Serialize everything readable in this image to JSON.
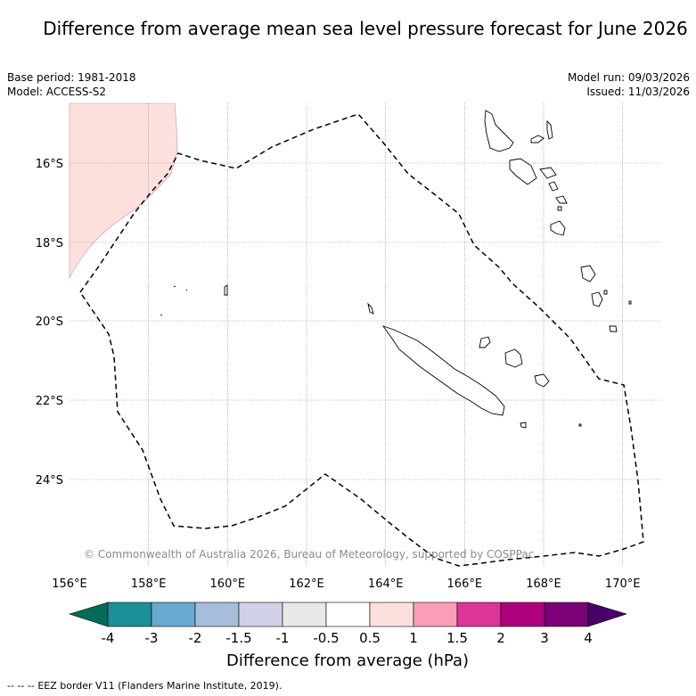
{
  "title": "Difference from average mean sea level pressure forecast for June 2026",
  "metadata": {
    "base_period": "Base period: 1981-2018",
    "model": "Model: ACCESS-S2",
    "model_run": "Model run: 09/03/2026",
    "issued": "Issued: 11/03/2026"
  },
  "map": {
    "lon_range": [
      156,
      171
    ],
    "lat_range": [
      -26.1,
      -14.6
    ],
    "lon_ticks": [
      "156°E",
      "158°E",
      "160°E",
      "162°E",
      "164°E",
      "166°E",
      "168°E",
      "170°E"
    ],
    "lat_ticks": [
      "16°S",
      "18°S",
      "20°S",
      "22°S",
      "24°S"
    ],
    "credit": "© Commonwealth of Australia 2026, Bureau of Meteorology, supported by COSPPac",
    "anomaly_region_category": "0.5 to 1",
    "anomaly_fill_color": "#fde0de",
    "eez_border_color": "#000000",
    "landmasses": [
      "New Caledonia",
      "Loyalty Islands",
      "Vanuatu",
      "Chesterfield Islands"
    ]
  },
  "colorbar": {
    "title": "Difference from average (hPa)",
    "tick_labels": [
      "-4",
      "-3",
      "-2",
      "-1.5",
      "-1",
      "-0.5",
      "0.5",
      "1",
      "1.5",
      "2",
      "3",
      "4"
    ],
    "colors": [
      "#1a9098",
      "#67a9cf",
      "#a6bddb",
      "#d0d1e6",
      "#e8e8e8",
      "#ffffff",
      "#fde0de",
      "#f99eb6",
      "#dd3497",
      "#ae017e",
      "#7a0177"
    ],
    "under_color": "#036c59",
    "over_color": "#49006a"
  },
  "legend": {
    "eez_label": "EEZ border V11 (Flanders Marine Institute, 2019).",
    "eez_symbol": "-- -- --"
  }
}
